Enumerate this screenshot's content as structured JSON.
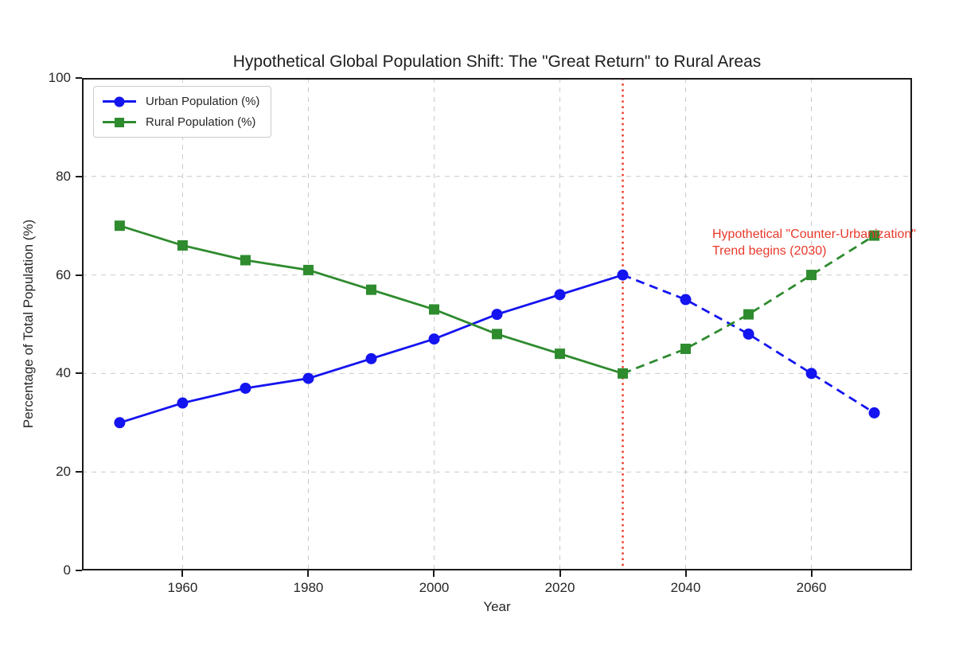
{
  "chart": {
    "title": "Hypothetical Global Population Shift: The \"Great Return\" to Rural Areas",
    "xlabel": "Year",
    "ylabel": "Percentage of Total Population (%)",
    "annotation": {
      "line1": "Hypothetical \"Counter-Urbanization\"",
      "line2": "Trend begins (2030)",
      "color": "#e8392b"
    }
  },
  "chart_data": {
    "type": "line",
    "x": [
      1950,
      1960,
      1970,
      1980,
      1990,
      2000,
      2010,
      2020,
      2030,
      2040,
      2050,
      2060,
      2070
    ],
    "series": [
      {
        "name": "Urban Population (%)",
        "color": "#1414f0",
        "marker": "circle",
        "linestyle": "solid-then-dashed",
        "style_change_at": 2030,
        "values": [
          30,
          34,
          37,
          39,
          43,
          47,
          52,
          56,
          60,
          55,
          48,
          40,
          32
        ]
      },
      {
        "name": "Rural Population (%)",
        "color": "#2e8b2e",
        "marker": "square",
        "linestyle": "solid-then-dashed",
        "style_change_at": 2030,
        "values": [
          70,
          66,
          63,
          61,
          57,
          53,
          48,
          44,
          40,
          45,
          52,
          60,
          68
        ]
      }
    ],
    "xlim": [
      1944,
      2076
    ],
    "ylim": [
      0,
      100
    ],
    "xticks": [
      1960,
      1980,
      2000,
      2020,
      2040,
      2060
    ],
    "yticks": [
      0,
      20,
      40,
      60,
      80,
      100
    ],
    "grid": true,
    "grid_color": "#c9c9c9",
    "legend_position": "upper-left",
    "vline": {
      "x": 2030,
      "color": "#f0331f",
      "style": "dotted"
    }
  }
}
